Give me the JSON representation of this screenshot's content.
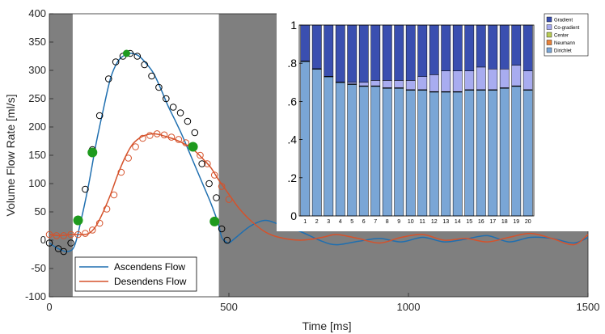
{
  "chart_data": [
    {
      "type": "line",
      "xlabel": "Time [ms]",
      "ylabel": "Volume Flow Rate [ml/s]",
      "xlim": [
        0,
        1500
      ],
      "ylim": [
        -100,
        400
      ],
      "xticks": [
        0,
        500,
        1000,
        1500
      ],
      "yticks": [
        -100,
        -50,
        0,
        50,
        100,
        150,
        200,
        250,
        300,
        350,
        400
      ],
      "shaded_regions": [
        [
          0,
          65
        ],
        [
          472,
          1500
        ]
      ],
      "legend_position": "bottom-left",
      "series": [
        {
          "name": "Ascendens Flow",
          "color": "#1f6fb0",
          "x": [
            0,
            25,
            50,
            70,
            90,
            110,
            130,
            150,
            170,
            190,
            210,
            230,
            250,
            270,
            290,
            310,
            330,
            350,
            370,
            390,
            410,
            430,
            450,
            470,
            480,
            490,
            500,
            520,
            560,
            600,
            640,
            700,
            760,
            800,
            860,
            920,
            980,
            1040,
            1100,
            1160,
            1220,
            1280,
            1340,
            1400,
            1460,
            1500
          ],
          "values": [
            -5,
            -15,
            -20,
            -10,
            40,
            100,
            170,
            230,
            285,
            315,
            327,
            330,
            325,
            312,
            295,
            268,
            238,
            212,
            185,
            155,
            125,
            95,
            65,
            30,
            5,
            -2,
            -5,
            5,
            25,
            35,
            28,
            15,
            -2,
            -8,
            -2,
            3,
            -3,
            5,
            -3,
            2,
            8,
            -3,
            5,
            3,
            -5,
            5
          ]
        },
        {
          "name": "Desendens Flow",
          "color": "#d5522b",
          "x": [
            0,
            30,
            60,
            90,
            110,
            130,
            150,
            170,
            190,
            210,
            230,
            250,
            270,
            290,
            310,
            330,
            350,
            370,
            390,
            410,
            430,
            450,
            470,
            490,
            510,
            530,
            560,
            600,
            640,
            700,
            760,
            800,
            860,
            920,
            980,
            1040,
            1100,
            1160,
            1220,
            1280,
            1340,
            1400,
            1460,
            1500
          ],
          "values": [
            10,
            8,
            10,
            10,
            12,
            25,
            50,
            80,
            115,
            145,
            168,
            180,
            186,
            188,
            186,
            182,
            178,
            172,
            165,
            155,
            142,
            128,
            108,
            90,
            72,
            55,
            35,
            15,
            5,
            0,
            5,
            10,
            3,
            -5,
            5,
            10,
            0,
            3,
            -3,
            5,
            12,
            3,
            -8,
            10
          ]
        }
      ],
      "markers": {
        "ascendens_circles_x": [
          0,
          25,
          40,
          60,
          80,
          100,
          120,
          140,
          165,
          185,
          205,
          225,
          245,
          265,
          285,
          305,
          325,
          345,
          365,
          385,
          405,
          425,
          445,
          465,
          480,
          495
        ],
        "ascendens_circles_values": [
          -5,
          -15,
          -20,
          -5,
          35,
          90,
          160,
          220,
          285,
          315,
          325,
          330,
          325,
          310,
          290,
          270,
          250,
          235,
          225,
          210,
          190,
          135,
          100,
          75,
          20,
          0
        ],
        "desendens_circles_x": [
          0,
          20,
          40,
          60,
          80,
          100,
          120,
          140,
          160,
          180,
          200,
          220,
          240,
          260,
          280,
          300,
          320,
          340,
          360,
          380,
          400,
          420,
          440,
          460,
          480,
          500
        ],
        "desendens_circles_values": [
          10,
          8,
          8,
          10,
          10,
          12,
          18,
          30,
          55,
          80,
          120,
          145,
          165,
          180,
          185,
          188,
          186,
          182,
          178,
          172,
          165,
          150,
          135,
          115,
          95,
          72
        ],
        "green_points_x": [
          80,
          120,
          215,
          400,
          460
        ],
        "green_points_values": [
          35,
          155,
          330,
          165,
          33
        ]
      }
    },
    {
      "type": "bar",
      "stacked": true,
      "ylim": [
        0,
        1
      ],
      "yticks": [
        "0",
        ".2",
        ".4",
        ".6",
        ".8",
        "1"
      ],
      "categories": [
        "1",
        "2",
        "3",
        "4",
        "5",
        "6",
        "7",
        "8",
        "9",
        "10",
        "11",
        "12",
        "13",
        "14",
        "15",
        "16",
        "17",
        "18",
        "19",
        "20"
      ],
      "legend_position": "top-right",
      "series": [
        {
          "name": "Dirichlet",
          "color": "#7aa6d6",
          "values": [
            0.81,
            0.77,
            0.73,
            0.7,
            0.69,
            0.68,
            0.68,
            0.67,
            0.67,
            0.66,
            0.66,
            0.65,
            0.65,
            0.65,
            0.66,
            0.66,
            0.66,
            0.67,
            0.68,
            0.66
          ]
        },
        {
          "name": "Neumann",
          "color": "#e8823a",
          "values": [
            0,
            0,
            0,
            0,
            0,
            0,
            0,
            0,
            0,
            0,
            0,
            0,
            0,
            0,
            0,
            0,
            0,
            0,
            0,
            0
          ]
        },
        {
          "name": "Center",
          "color": "#b8cc55",
          "values": [
            0,
            0,
            0,
            0,
            0,
            0,
            0,
            0,
            0,
            0,
            0,
            0,
            0,
            0,
            0,
            0,
            0,
            0,
            0,
            0
          ]
        },
        {
          "name": "Co-gradient",
          "color": "#a8acf0",
          "values": [
            0,
            0,
            0,
            0,
            0.01,
            0.02,
            0.03,
            0.04,
            0.04,
            0.05,
            0.07,
            0.09,
            0.11,
            0.11,
            0.1,
            0.12,
            0.11,
            0.1,
            0.11,
            0.1
          ]
        },
        {
          "name": "Gradient",
          "color": "#3a4fb0",
          "values": [
            0.19,
            0.23,
            0.27,
            0.3,
            0.3,
            0.3,
            0.29,
            0.29,
            0.29,
            0.29,
            0.27,
            0.26,
            0.24,
            0.24,
            0.24,
            0.22,
            0.23,
            0.23,
            0.21,
            0.24
          ]
        }
      ]
    }
  ]
}
